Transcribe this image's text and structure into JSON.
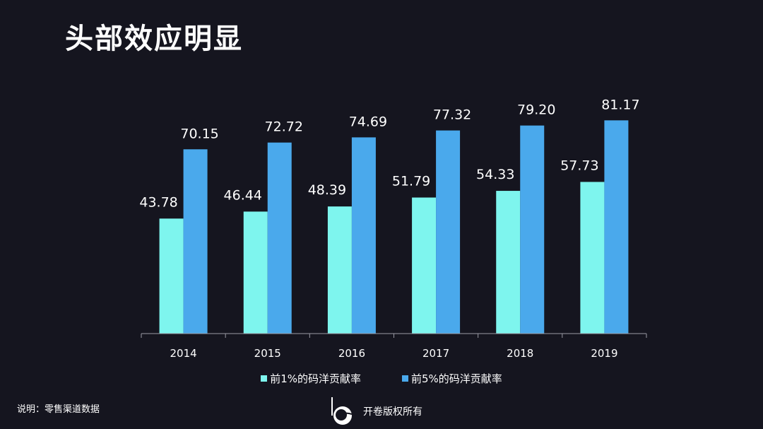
{
  "title": "头部效应明显",
  "note": "说明：零售渠道数据",
  "copyright": "开卷版权所有",
  "colors": {
    "background": "#15151f",
    "series1": "#7ef5ee",
    "series2": "#4aa9ec",
    "axis": "#9a9aa4"
  },
  "chart_data": {
    "type": "bar",
    "categories": [
      "2014",
      "2015",
      "2016",
      "2017",
      "2018",
      "2019"
    ],
    "series": [
      {
        "name": "前1%的码洋贡献率",
        "values": [
          43.78,
          46.44,
          48.39,
          51.79,
          54.33,
          57.73
        ],
        "labels": [
          "43.78",
          "46.44",
          "48.39",
          "51.79",
          "54.33",
          "57.73"
        ]
      },
      {
        "name": "前5%的码洋贡献率",
        "values": [
          70.15,
          72.72,
          74.69,
          77.32,
          79.2,
          81.17
        ],
        "labels": [
          "70.15",
          "72.72",
          "74.69",
          "77.32",
          "79.20",
          "81.17"
        ]
      }
    ],
    "ylim": [
      0,
      100
    ],
    "grid": false,
    "legend_position": "bottom"
  }
}
